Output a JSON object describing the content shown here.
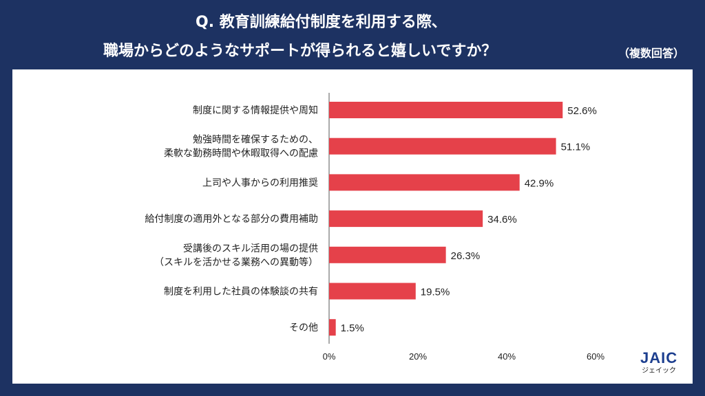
{
  "header": {
    "title_line1": "Q. 教育訓練給付制度を利用する際、",
    "title_line2": "職場からどのようなサポートが得られると嬉しいですか？",
    "note": "（複数回答）"
  },
  "logo": {
    "name": "JAIC",
    "kana": "ジェイック"
  },
  "colors": {
    "bar": "#e5414a",
    "background": "#1d3262"
  },
  "chart_data": {
    "type": "bar",
    "orientation": "horizontal",
    "categories": [
      [
        "制度に関する情報提供や周知"
      ],
      [
        "勉強時間を確保するための、",
        "柔軟な勤務時間や休暇取得への配慮"
      ],
      [
        "上司や人事からの利用推奨"
      ],
      [
        "給付制度の適用外となる部分の費用補助"
      ],
      [
        "受講後のスキル活用の場の提供",
        "（スキルを活かせる業務への異動等）"
      ],
      [
        "制度を利用した社員の体験談の共有"
      ],
      [
        "その他"
      ]
    ],
    "values": [
      52.6,
      51.1,
      42.9,
      34.6,
      26.3,
      19.5,
      1.5
    ],
    "value_labels": [
      "52.6%",
      "51.1%",
      "42.9%",
      "34.6%",
      "26.3%",
      "19.5%",
      "1.5%"
    ],
    "xlim": [
      0,
      60
    ],
    "xticks": [
      0,
      20,
      40,
      60
    ],
    "xtick_labels": [
      "0%",
      "20%",
      "40%",
      "60%"
    ],
    "grid": false
  }
}
